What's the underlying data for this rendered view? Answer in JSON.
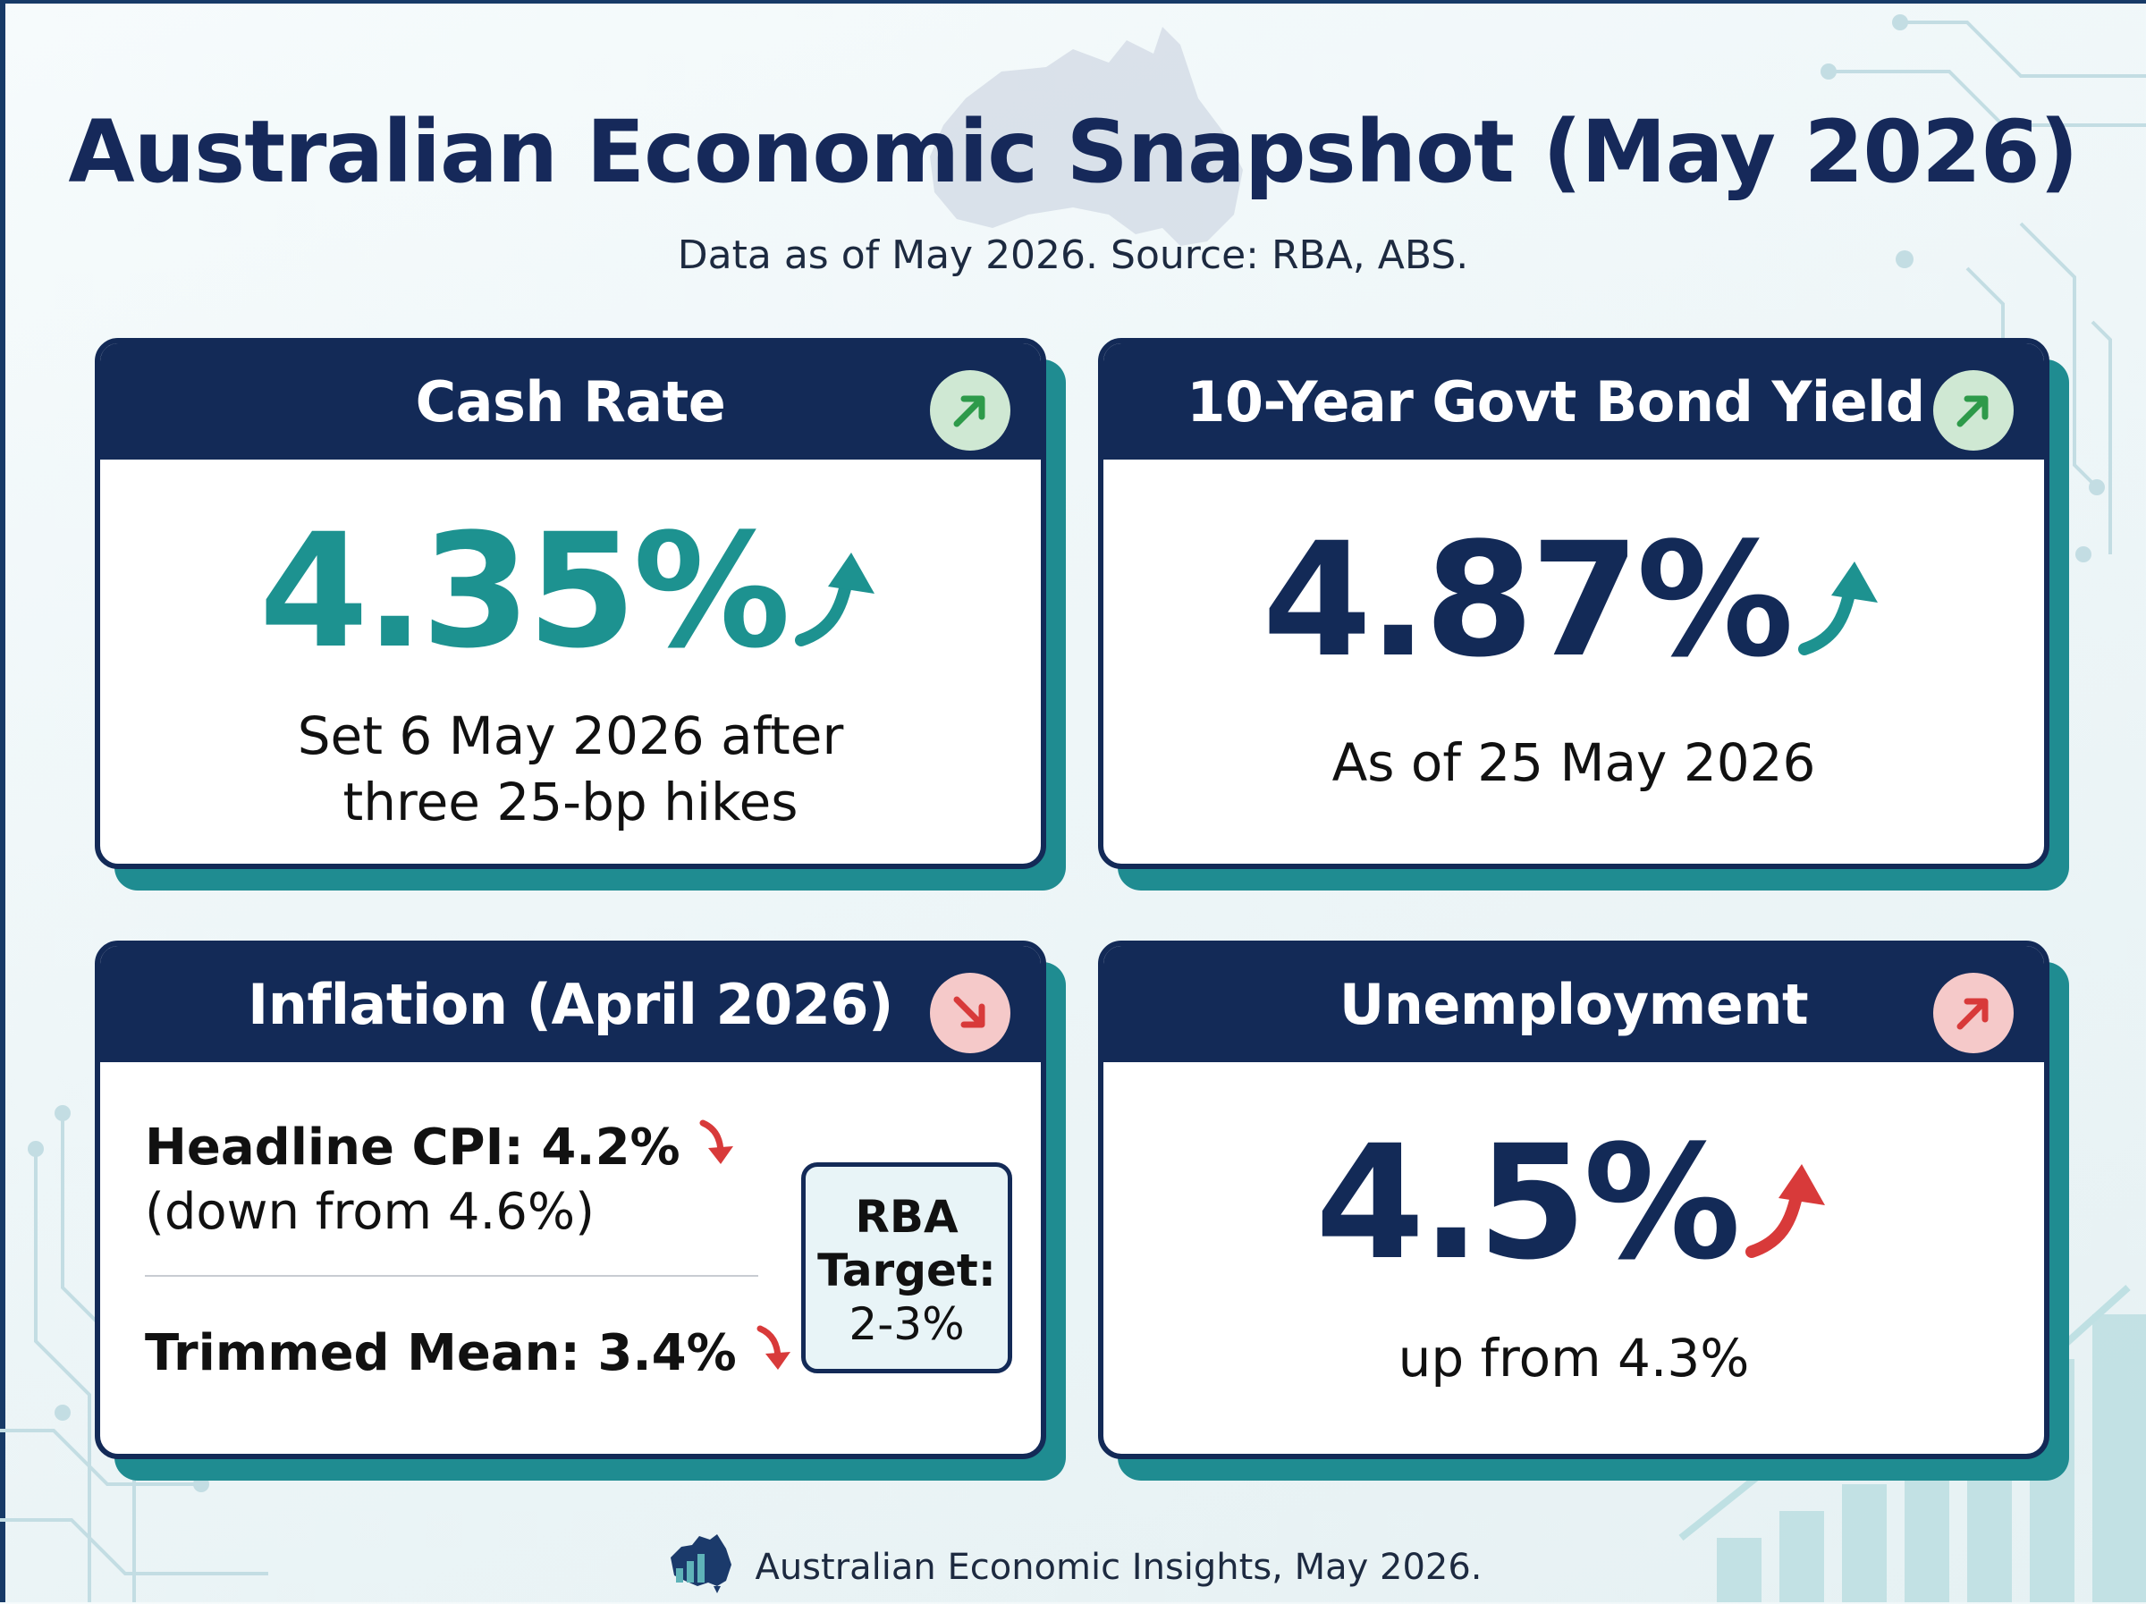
{
  "header": {
    "title": "Australian Economic Snapshot (May 2026)",
    "subtitle": "Data as of May 2026. Source: RBA, ABS."
  },
  "cards": {
    "cash_rate": {
      "title": "Cash Rate",
      "value": "4.35%",
      "trend": "up",
      "caption_line1": "Set 6 May 2026 after",
      "caption_line2": "three 25-bp hikes"
    },
    "bond_yield": {
      "title": "10-Year Govt Bond Yield",
      "value": "4.87%",
      "trend": "up",
      "caption": "As of 25 May 2026"
    },
    "inflation": {
      "title": "Inflation (April 2026)",
      "trend": "down",
      "headline_label": "Headline CPI: 4.2%",
      "headline_note": "(down from 4.6%)",
      "trimmed_label": "Trimmed Mean: 3.4%",
      "target_line1": "RBA",
      "target_line2": "Target:",
      "target_value": "2-3%"
    },
    "unemployment": {
      "title": "Unemployment",
      "value": "4.5%",
      "trend": "up",
      "caption": "up from 4.3%"
    }
  },
  "footer": {
    "text": "Australian Economic Insights, May 2026."
  },
  "colors": {
    "navy": "#132a57",
    "teal": "#1d9290",
    "up_green": "#2e9a4a",
    "down_red": "#d83a3a",
    "background": "#eef6f8"
  },
  "icons": {
    "trend_up": "arrow-up-right-icon",
    "trend_down": "arrow-down-right-icon",
    "footer_logo": "australia-chart-logo"
  }
}
